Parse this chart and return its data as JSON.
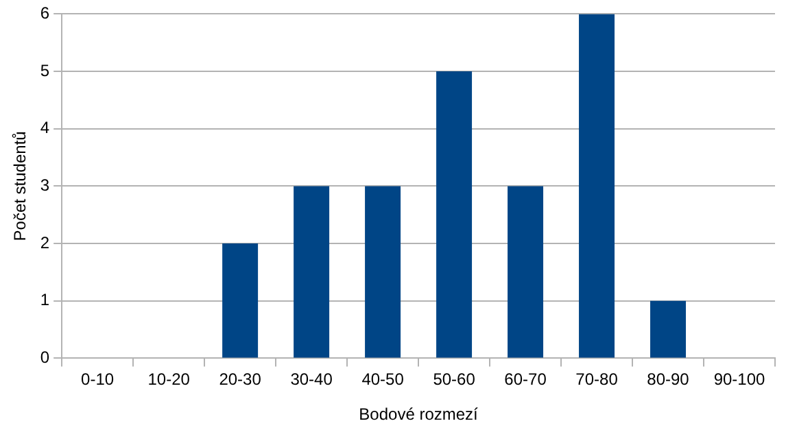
{
  "chart_data": {
    "type": "bar",
    "xlabel": "Bodové rozmezí",
    "ylabel": "Počet studentů",
    "categories": [
      "0-10",
      "10-20",
      "20-30",
      "30-40",
      "40-50",
      "50-60",
      "60-70",
      "70-80",
      "80-90",
      "90-100"
    ],
    "values": [
      0,
      0,
      2,
      3,
      3,
      5,
      3,
      6,
      1,
      0
    ],
    "color": "#004586",
    "ylim": [
      0,
      6
    ],
    "yticks": [
      0,
      1,
      2,
      3,
      4,
      5,
      6
    ],
    "grid": "y",
    "legend": false
  }
}
